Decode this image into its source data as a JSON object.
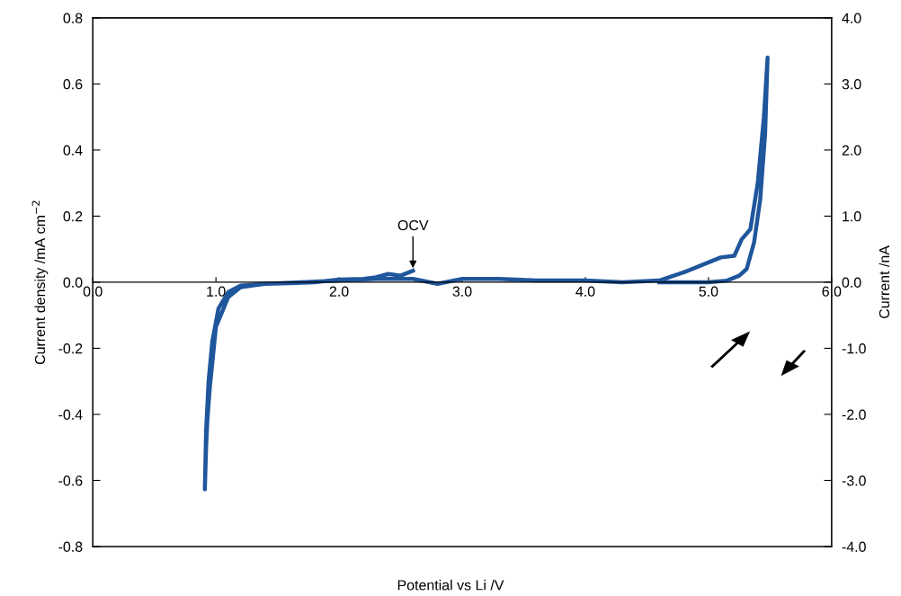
{
  "chart_data": {
    "type": "line",
    "xlabel": "Potential vs Li /V",
    "ylabel": "Current density /mA cm$^{−2}$",
    "y2label": "Current /nA",
    "xlim": [
      0.0,
      6.0
    ],
    "ylim": [
      -0.8,
      0.8
    ],
    "y2lim": [
      -4.0,
      4.0
    ],
    "xticks": [
      {
        "value": 0,
        "label": "0.0"
      },
      {
        "value": 1,
        "label": "1.0"
      },
      {
        "value": 2,
        "label": "2.0"
      },
      {
        "value": 3,
        "label": "3.0"
      },
      {
        "value": 4,
        "label": "4.0"
      },
      {
        "value": 5,
        "label": "5.0"
      },
      {
        "value": 6,
        "label": "6.0"
      }
    ],
    "yticks": [
      {
        "value": -0.8,
        "label": "-0.8"
      },
      {
        "value": -0.6,
        "label": "-0.6"
      },
      {
        "value": -0.4,
        "label": "-0.4"
      },
      {
        "value": -0.2,
        "label": "-0.2"
      },
      {
        "value": 0,
        "label": "0.0"
      },
      {
        "value": 0.2,
        "label": "0.2"
      },
      {
        "value": 0.4,
        "label": "0.4"
      },
      {
        "value": 0.6,
        "label": "0.6"
      },
      {
        "value": 0.8,
        "label": "0.8"
      }
    ],
    "y2ticks": [
      {
        "value": -4,
        "label": "-4.0"
      },
      {
        "value": -3,
        "label": "-3.0"
      },
      {
        "value": -2,
        "label": "-2.0"
      },
      {
        "value": -1,
        "label": "-1.0"
      },
      {
        "value": 0,
        "label": "0.0"
      },
      {
        "value": 1,
        "label": "1.0"
      },
      {
        "value": 2,
        "label": "2.0"
      },
      {
        "value": 3,
        "label": "3.0"
      },
      {
        "value": 4,
        "label": "4.0"
      }
    ],
    "grid": false,
    "legend": false,
    "marker": "none",
    "line_style": "solid",
    "annotations": [
      {
        "text": "OCV",
        "x": 2.6,
        "y": 0.035
      }
    ],
    "series": [
      {
        "color": "#1f569c",
        "x": [
          2.6,
          2.5,
          2.4,
          2.3,
          2.2,
          2.0,
          1.8,
          1.6,
          1.4,
          1.3,
          1.2,
          1.1,
          1.0,
          0.95,
          0.93,
          0.92,
          0.91,
          0.92,
          0.94,
          0.97,
          1.02,
          1.1,
          1.2,
          1.4,
          1.7,
          2.0,
          2.3,
          2.6,
          2.8,
          3.0,
          3.3,
          3.6,
          4.0,
          4.3,
          4.6,
          4.8,
          5.0,
          5.1,
          5.21,
          5.27,
          5.34,
          5.4,
          5.45,
          5.48,
          5.46,
          5.42,
          5.37,
          5.31,
          5.25,
          5.15,
          5.0,
          4.8,
          4.6
        ],
        "values": [
          0.035,
          0.02,
          0.025,
          0.015,
          0.01,
          0.008,
          0.0,
          -0.003,
          -0.005,
          -0.01,
          -0.015,
          -0.045,
          -0.135,
          -0.32,
          -0.42,
          -0.5,
          -0.627,
          -0.45,
          -0.3,
          -0.18,
          -0.08,
          -0.03,
          -0.01,
          -0.005,
          0.0,
          0.005,
          0.01,
          0.01,
          -0.005,
          0.01,
          0.01,
          0.005,
          0.005,
          0.0,
          0.005,
          0.03,
          0.06,
          0.075,
          0.08,
          0.13,
          0.16,
          0.3,
          0.5,
          0.68,
          0.45,
          0.25,
          0.12,
          0.04,
          0.02,
          0.005,
          0.0,
          0.0,
          0.0
        ]
      }
    ]
  }
}
